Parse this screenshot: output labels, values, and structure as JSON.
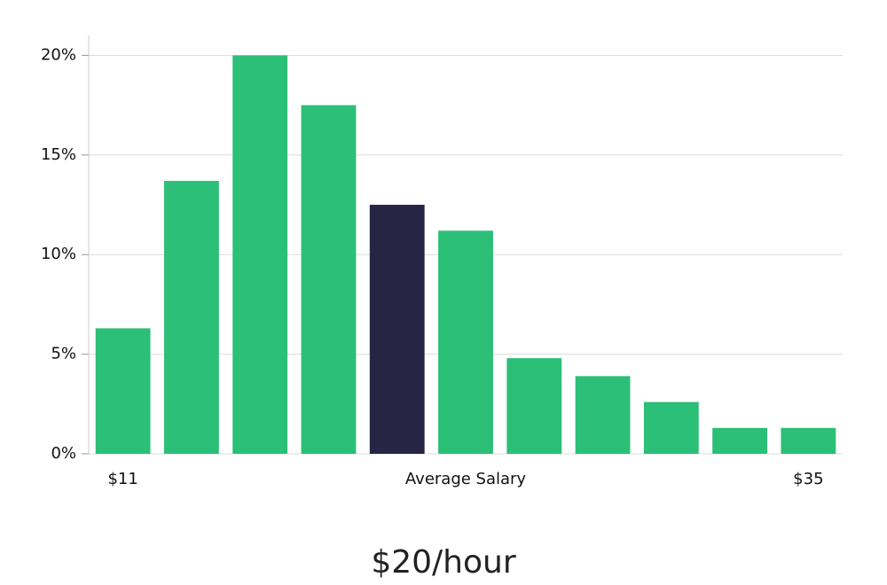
{
  "chart_data": {
    "type": "bar",
    "categories": [
      "$11",
      null,
      null,
      null,
      null,
      null,
      null,
      null,
      null,
      null,
      "$35"
    ],
    "values": [
      6.3,
      13.7,
      20,
      17.5,
      12.5,
      11.2,
      4.8,
      3.9,
      2.6,
      1.3,
      1.3
    ],
    "colors": [
      "#2bbf78",
      "#2bbf78",
      "#2bbf78",
      "#2bbf78",
      "#272544",
      "#2bbf78",
      "#2bbf78",
      "#2bbf78",
      "#2bbf78",
      "#2bbf78",
      "#2bbf78"
    ],
    "ylim": [
      0,
      21
    ],
    "yticks": [
      {
        "value": 0,
        "label": "0%"
      },
      {
        "value": 5,
        "label": "5%"
      },
      {
        "value": 10,
        "label": "10%"
      },
      {
        "value": 15,
        "label": "15%"
      },
      {
        "value": 20,
        "label": "20%"
      }
    ],
    "grid": true,
    "annotation": "Average Salary",
    "footer": "$20/hour"
  }
}
